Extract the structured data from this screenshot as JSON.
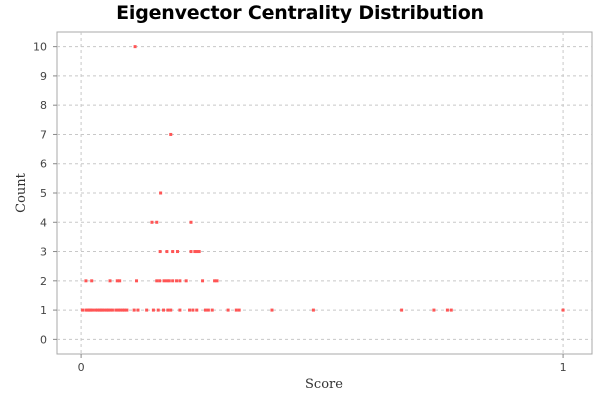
{
  "chart_data": {
    "type": "scatter",
    "title": "Eigenvector Centrality Distribution",
    "xlabel": "Score",
    "ylabel": "Count",
    "xlim": [
      -0.05,
      1.06
    ],
    "ylim": [
      -0.5,
      10.5
    ],
    "x_ticks": [
      "0",
      "1"
    ],
    "y_ticks": [
      "0",
      "1",
      "2",
      "3",
      "4",
      "5",
      "6",
      "7",
      "8",
      "9",
      "10"
    ],
    "grid": true,
    "legend": "none",
    "series": [
      {
        "color": "#ff5555",
        "points": [
          [
            0.003,
            1
          ],
          [
            0.01,
            1
          ],
          [
            0.014,
            1
          ],
          [
            0.017,
            1
          ],
          [
            0.02,
            1
          ],
          [
            0.024,
            1
          ],
          [
            0.03,
            1
          ],
          [
            0.034,
            1
          ],
          [
            0.038,
            1
          ],
          [
            0.041,
            1
          ],
          [
            0.044,
            1
          ],
          [
            0.048,
            1
          ],
          [
            0.053,
            1
          ],
          [
            0.056,
            1
          ],
          [
            0.06,
            1
          ],
          [
            0.065,
            1
          ],
          [
            0.072,
            1
          ],
          [
            0.077,
            1
          ],
          [
            0.081,
            1
          ],
          [
            0.086,
            1
          ],
          [
            0.09,
            1
          ],
          [
            0.095,
            1
          ],
          [
            0.11,
            1
          ],
          [
            0.118,
            1
          ],
          [
            0.136,
            1
          ],
          [
            0.15,
            1
          ],
          [
            0.16,
            1
          ],
          [
            0.171,
            1
          ],
          [
            0.18,
            1
          ],
          [
            0.186,
            1
          ],
          [
            0.205,
            1
          ],
          [
            0.225,
            1
          ],
          [
            0.232,
            1
          ],
          [
            0.24,
            1
          ],
          [
            0.258,
            1
          ],
          [
            0.264,
            1
          ],
          [
            0.272,
            1
          ],
          [
            0.305,
            1
          ],
          [
            0.322,
            1
          ],
          [
            0.328,
            1
          ],
          [
            0.396,
            1
          ],
          [
            0.482,
            1
          ],
          [
            0.665,
            1
          ],
          [
            0.732,
            1
          ],
          [
            0.76,
            1
          ],
          [
            0.768,
            1
          ],
          [
            1.0,
            1
          ],
          [
            0.01,
            2
          ],
          [
            0.022,
            2
          ],
          [
            0.06,
            2
          ],
          [
            0.075,
            2
          ],
          [
            0.08,
            2
          ],
          [
            0.115,
            2
          ],
          [
            0.157,
            2
          ],
          [
            0.163,
            2
          ],
          [
            0.172,
            2
          ],
          [
            0.178,
            2
          ],
          [
            0.183,
            2
          ],
          [
            0.19,
            2
          ],
          [
            0.198,
            2
          ],
          [
            0.205,
            2
          ],
          [
            0.218,
            2
          ],
          [
            0.252,
            2
          ],
          [
            0.277,
            2
          ],
          [
            0.282,
            2
          ],
          [
            0.164,
            3
          ],
          [
            0.178,
            3
          ],
          [
            0.19,
            3
          ],
          [
            0.2,
            3
          ],
          [
            0.228,
            3
          ],
          [
            0.236,
            3
          ],
          [
            0.24,
            3
          ],
          [
            0.245,
            3
          ],
          [
            0.147,
            4
          ],
          [
            0.157,
            4
          ],
          [
            0.228,
            4
          ],
          [
            0.165,
            5
          ],
          [
            0.186,
            7
          ],
          [
            0.112,
            10
          ]
        ]
      }
    ]
  }
}
